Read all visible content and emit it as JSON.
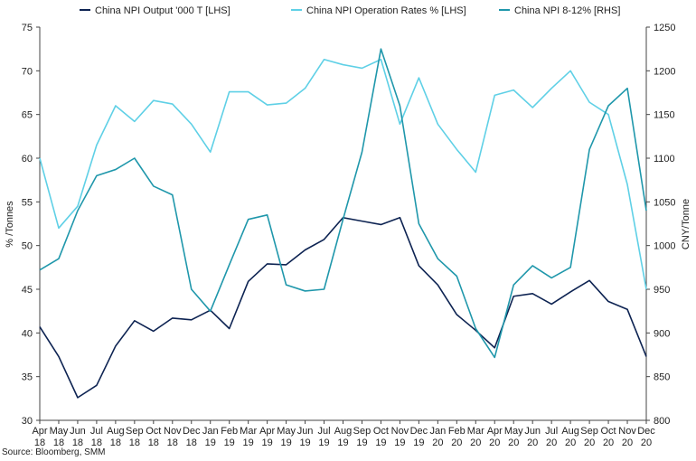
{
  "chart_data": {
    "type": "line",
    "title": "",
    "source": "Source: Bloomberg, SMM",
    "ylabel_left": "% /Tonnes",
    "ylabel_right": "CNY/Tonne",
    "ylim_left": [
      30,
      75
    ],
    "ylim_right": [
      800,
      1250
    ],
    "yticks_left": [
      "30",
      "35",
      "40",
      "45",
      "50",
      "55",
      "60",
      "65",
      "70",
      "75"
    ],
    "yticks_right": [
      "800",
      "850",
      "900",
      "950",
      "1000",
      "1050",
      "1100",
      "1150",
      "1200",
      "1250"
    ],
    "grid": false,
    "legend_position": "top",
    "x_month": [
      "Apr",
      "May",
      "Jun",
      "Jul",
      "Aug",
      "Sep",
      "Oct",
      "Nov",
      "Dec",
      "Jan",
      "Feb",
      "Mar",
      "Apr",
      "May",
      "Jun",
      "Jul",
      "Aug",
      "Sep",
      "Oct",
      "Nov",
      "Dec",
      "Jan",
      "Feb",
      "Mar",
      "Apr",
      "May",
      "Jun",
      "Jul",
      "Aug",
      "Sep",
      "Oct",
      "Nov",
      "Dec"
    ],
    "x_year": [
      "18",
      "18",
      "18",
      "18",
      "18",
      "18",
      "18",
      "18",
      "18",
      "19",
      "19",
      "19",
      "19",
      "19",
      "19",
      "19",
      "19",
      "19",
      "19",
      "19",
      "19",
      "20",
      "20",
      "20",
      "20",
      "20",
      "20",
      "20",
      "20",
      "20",
      "20",
      "20",
      "20"
    ],
    "series": [
      {
        "name": "China NPI Output '000 T [LHS]",
        "axis": "left",
        "color": "#0d2352",
        "values": [
          40.7,
          37.3,
          32.6,
          34.0,
          38.5,
          41.4,
          40.2,
          41.7,
          41.5,
          42.6,
          40.5,
          45.9,
          47.9,
          47.8,
          49.5,
          50.7,
          53.2,
          52.8,
          52.4,
          53.2,
          47.7,
          45.5,
          42.1,
          40.3,
          38.3,
          44.2,
          44.5,
          43.3,
          44.7,
          46.0,
          43.6,
          42.7,
          37.3
        ]
      },
      {
        "name": "China NPI Operation Rates % [LHS]",
        "axis": "left",
        "color": "#5fd0e6",
        "values": [
          60.0,
          52.0,
          54.5,
          61.5,
          66.0,
          64.2,
          66.6,
          66.2,
          63.9,
          60.7,
          67.6,
          67.6,
          66.1,
          66.3,
          68.0,
          71.3,
          70.7,
          70.3,
          71.3,
          63.9,
          69.2,
          63.9,
          61.0,
          58.4,
          67.2,
          67.8,
          65.8,
          68.0,
          70.0,
          66.4,
          65.0,
          57.0,
          45.0
        ]
      },
      {
        "name": "China NPI 8-12% [RHS]",
        "axis": "right",
        "color": "#1f97ab",
        "values": [
          972,
          985,
          1040,
          1080,
          1087,
          1100,
          1068,
          1058,
          950,
          925,
          978,
          1030,
          1035,
          955,
          948,
          950,
          1030,
          1107,
          1225,
          1160,
          1025,
          985,
          965,
          905,
          872,
          955,
          977,
          963,
          975,
          1110,
          1160,
          1180,
          1040
        ]
      }
    ]
  }
}
